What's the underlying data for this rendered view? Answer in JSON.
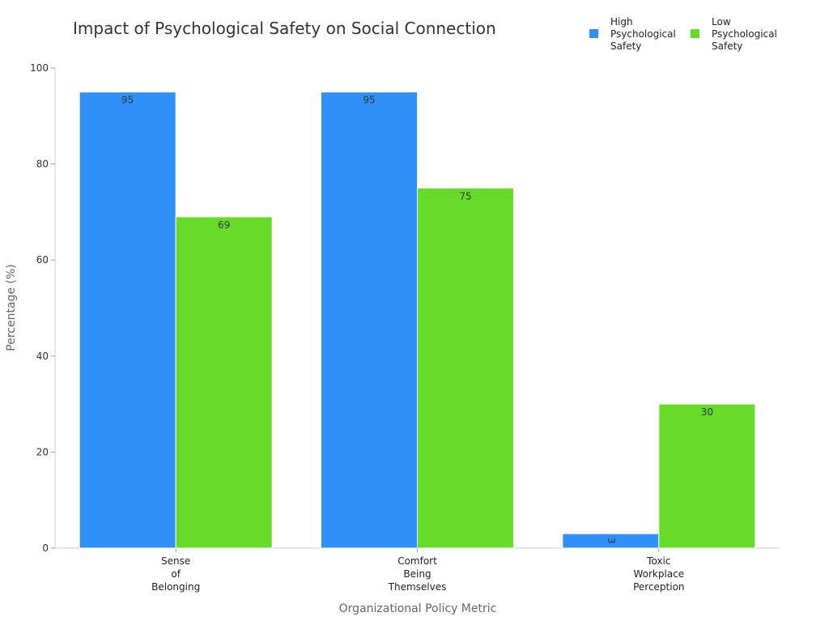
{
  "chart_data": {
    "type": "bar",
    "title": "Impact of Psychological Safety on Social Connection",
    "xlabel": "Organizational Policy Metric",
    "ylabel": "Percentage (%)",
    "ylim": [
      0,
      100
    ],
    "yticks": [
      0,
      20,
      40,
      60,
      80,
      100
    ],
    "categories": [
      [
        "Sense",
        "of",
        "Belonging"
      ],
      [
        "Comfort",
        "Being",
        "Themselves"
      ],
      [
        "Toxic",
        "Workplace",
        "Perception"
      ]
    ],
    "series": [
      {
        "name": [
          "High",
          "Psychological",
          "Safety"
        ],
        "color": "#2f90f8",
        "values": [
          95,
          95,
          3
        ]
      },
      {
        "name": [
          "Low",
          "Psychological",
          "Safety"
        ],
        "color": "#66db28",
        "values": [
          69,
          75,
          30
        ]
      }
    ],
    "grid": false,
    "legend": "top-right"
  }
}
